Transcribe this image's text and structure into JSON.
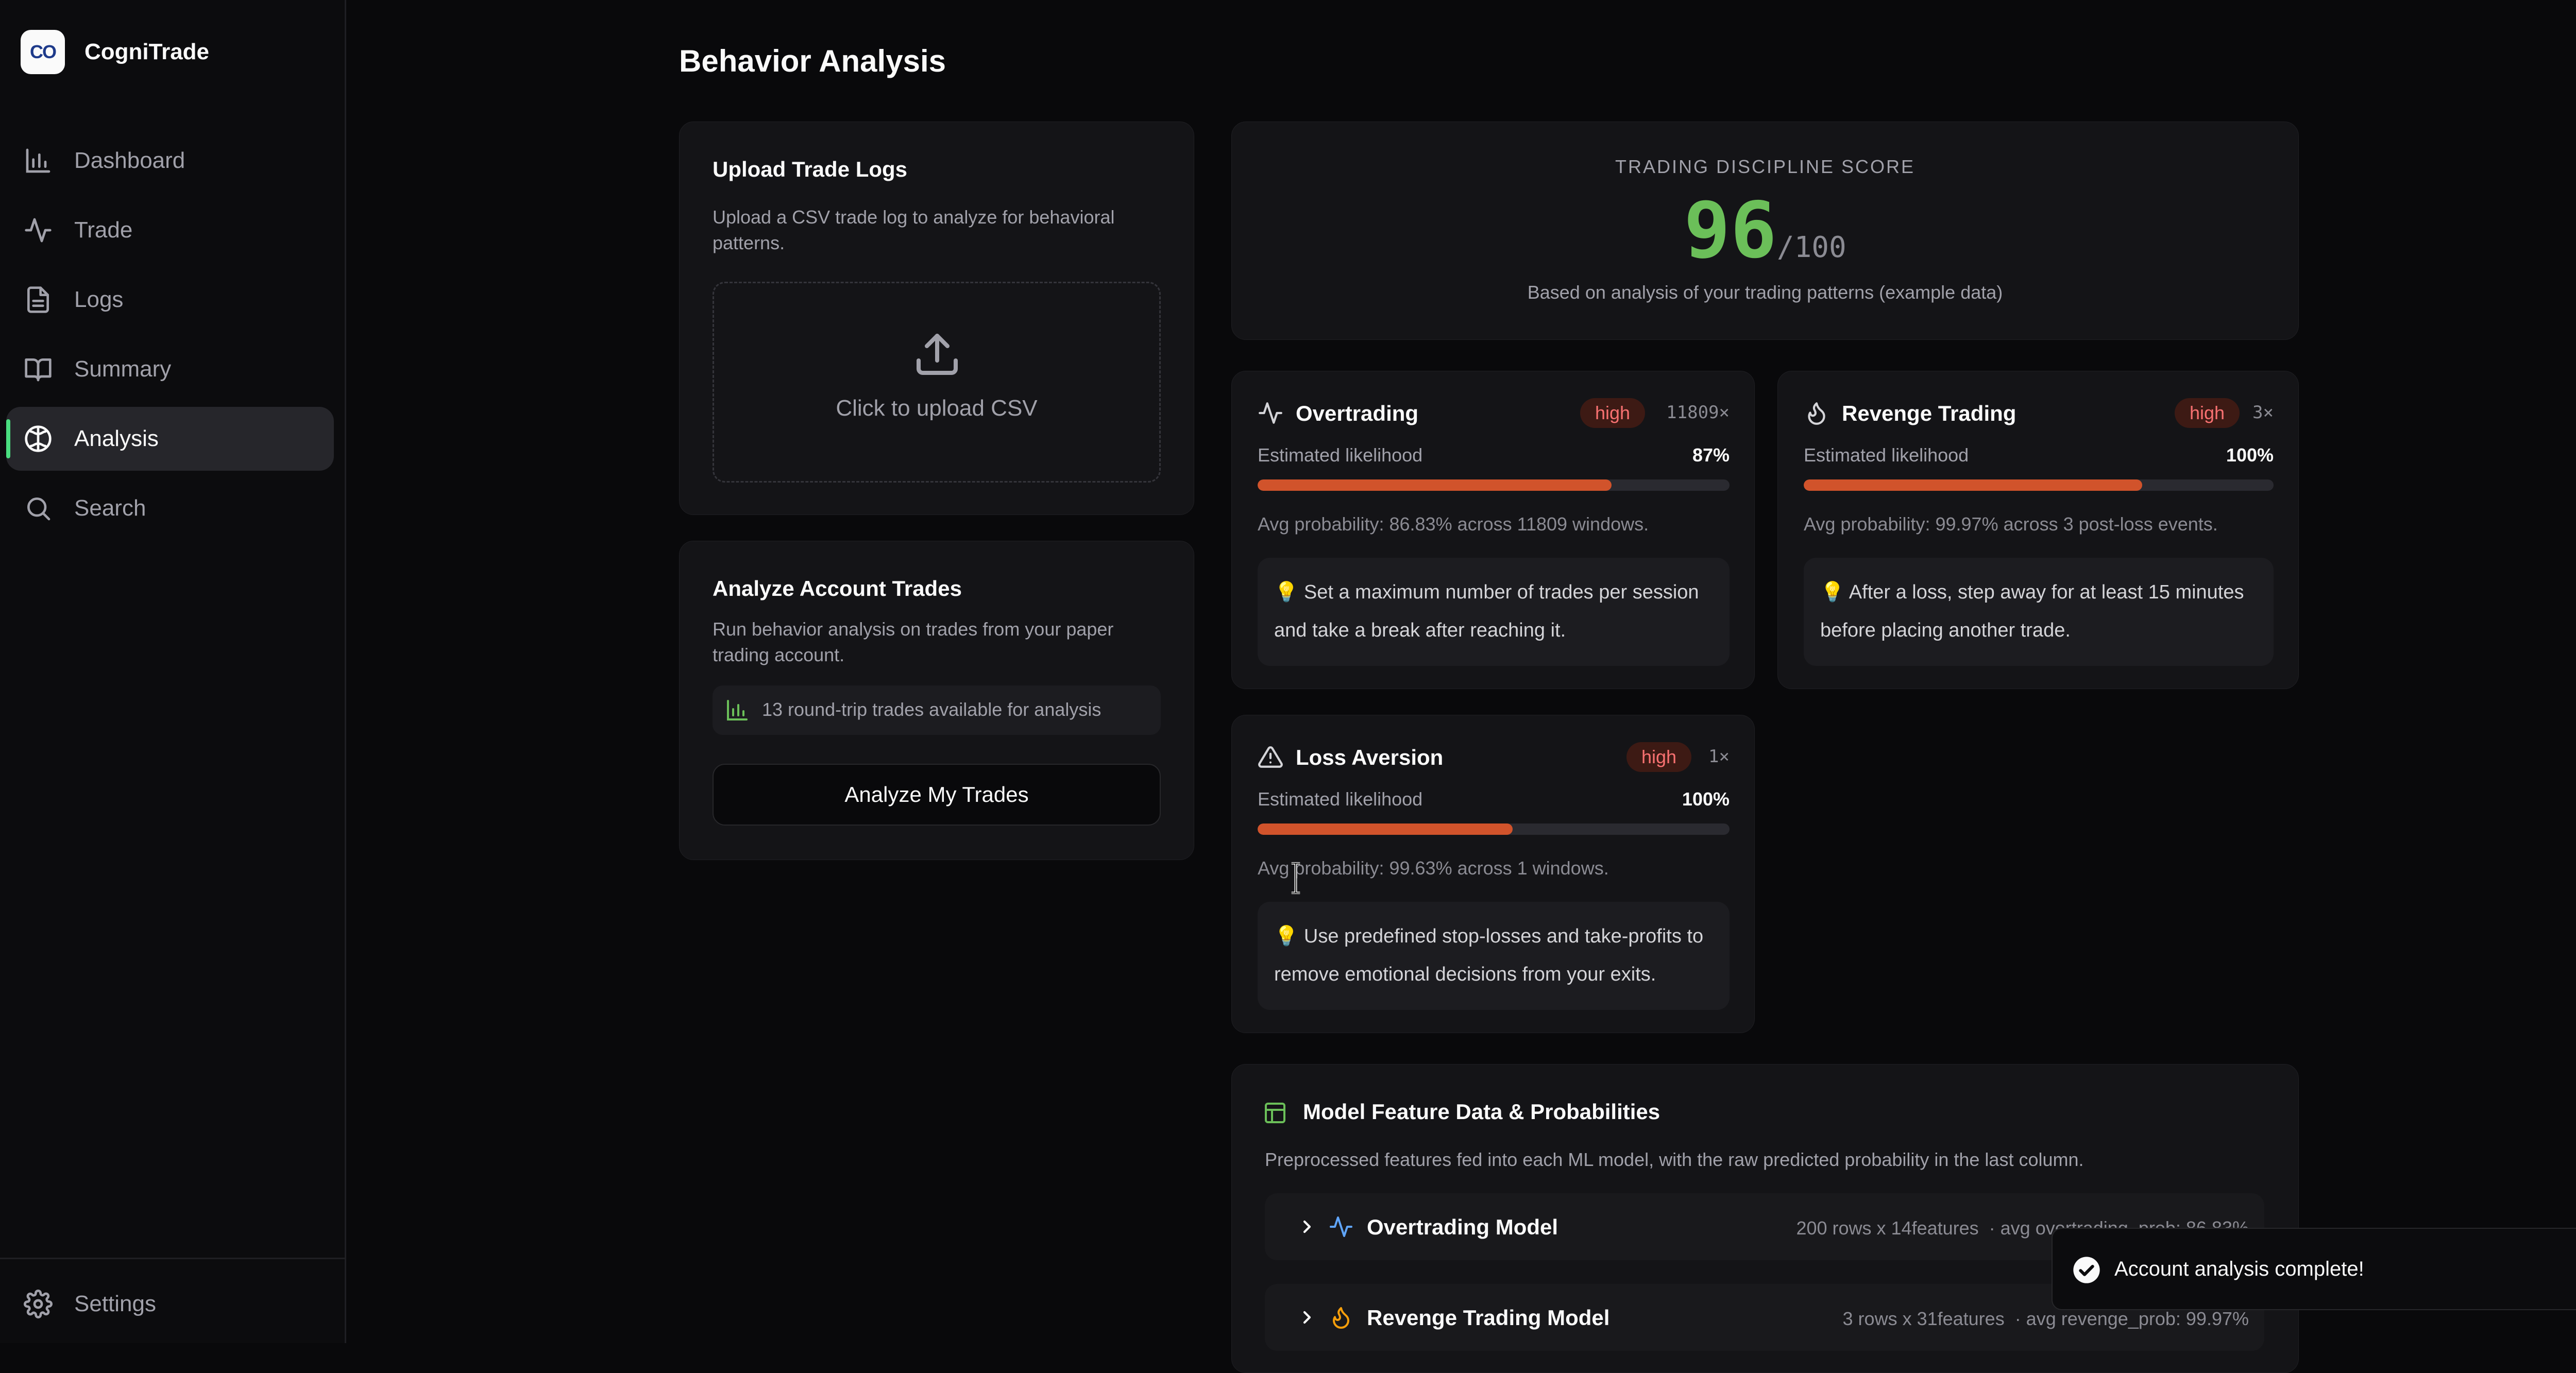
{
  "app": {
    "name": "CogniTrade",
    "logo_text": "CO"
  },
  "sidebar": {
    "items": [
      {
        "label": "Dashboard",
        "icon": "bar-chart-icon",
        "active": false
      },
      {
        "label": "Trade",
        "icon": "activity-icon",
        "active": false
      },
      {
        "label": "Logs",
        "icon": "file-text-icon",
        "active": false
      },
      {
        "label": "Summary",
        "icon": "book-open-icon",
        "active": false
      },
      {
        "label": "Analysis",
        "icon": "brain-icon",
        "active": true
      },
      {
        "label": "Search",
        "icon": "search-icon",
        "active": false
      }
    ],
    "settings_label": "Settings"
  },
  "page": {
    "title": "Behavior Analysis"
  },
  "upload": {
    "title": "Upload Trade Logs",
    "description": "Upload a CSV trade log to analyze for behavioral patterns.",
    "dropzone_label": "Click to upload CSV"
  },
  "analyze": {
    "title": "Analyze Account Trades",
    "description": "Run behavior analysis on trades from your paper trading account.",
    "available_text": "13 round-trip trades available for analysis",
    "button_label": "Analyze My Trades"
  },
  "score": {
    "label": "TRADING DISCIPLINE SCORE",
    "value": "96",
    "max": "/100",
    "caption": "Based on analysis of your trading patterns (example data)"
  },
  "patterns": [
    {
      "name": "Overtrading",
      "icon": "activity-icon",
      "severity": "high",
      "count": "11809×",
      "likelihood_label": "Estimated likelihood",
      "likelihood": "87%",
      "bar_fraction": 0.75,
      "avg": "Avg probability: 86.83% across 11809 windows.",
      "tip_icon": "lightbulb-icon",
      "tip": "Set a maximum number of trades per session and take a break after reaching it."
    },
    {
      "name": "Revenge Trading",
      "icon": "flame-icon",
      "severity": "high",
      "count": "3×",
      "likelihood_label": "Estimated likelihood",
      "likelihood": "100%",
      "bar_fraction": 0.72,
      "avg": "Avg probability: 99.97% across 3 post-loss events.",
      "tip_icon": "lightbulb-icon",
      "tip": "After a loss, step away for at least 15 minutes before placing another trade."
    },
    {
      "name": "Loss Aversion",
      "icon": "alert-triangle-icon",
      "severity": "high",
      "count": "1×",
      "likelihood_label": "Estimated likelihood",
      "likelihood": "100%",
      "bar_fraction": 0.54,
      "avg": "Avg probability: 99.63% across 1 windows.",
      "tip_icon": "lightbulb-icon",
      "tip": "Use predefined stop-losses and take-profits to remove emotional decisions from your exits."
    }
  ],
  "model_data": {
    "title": "Model Feature Data & Probabilities",
    "description": "Preprocessed features fed into each ML model, with the raw predicted probability in the last column.",
    "models": [
      {
        "name": "Overtrading Model",
        "icon": "activity-icon",
        "meta": "200 rows x 14features  · avg overtrading_prob: 86.83%"
      },
      {
        "name": "Revenge Trading Model",
        "icon": "flame-icon",
        "meta": "3 rows x 31features  · avg revenge_prob: 99.97%"
      }
    ]
  },
  "toast": {
    "message": "Account analysis complete!"
  },
  "colors": {
    "accent_green": "#6bbf59",
    "danger": "#d1532b",
    "background": "#09090b"
  }
}
